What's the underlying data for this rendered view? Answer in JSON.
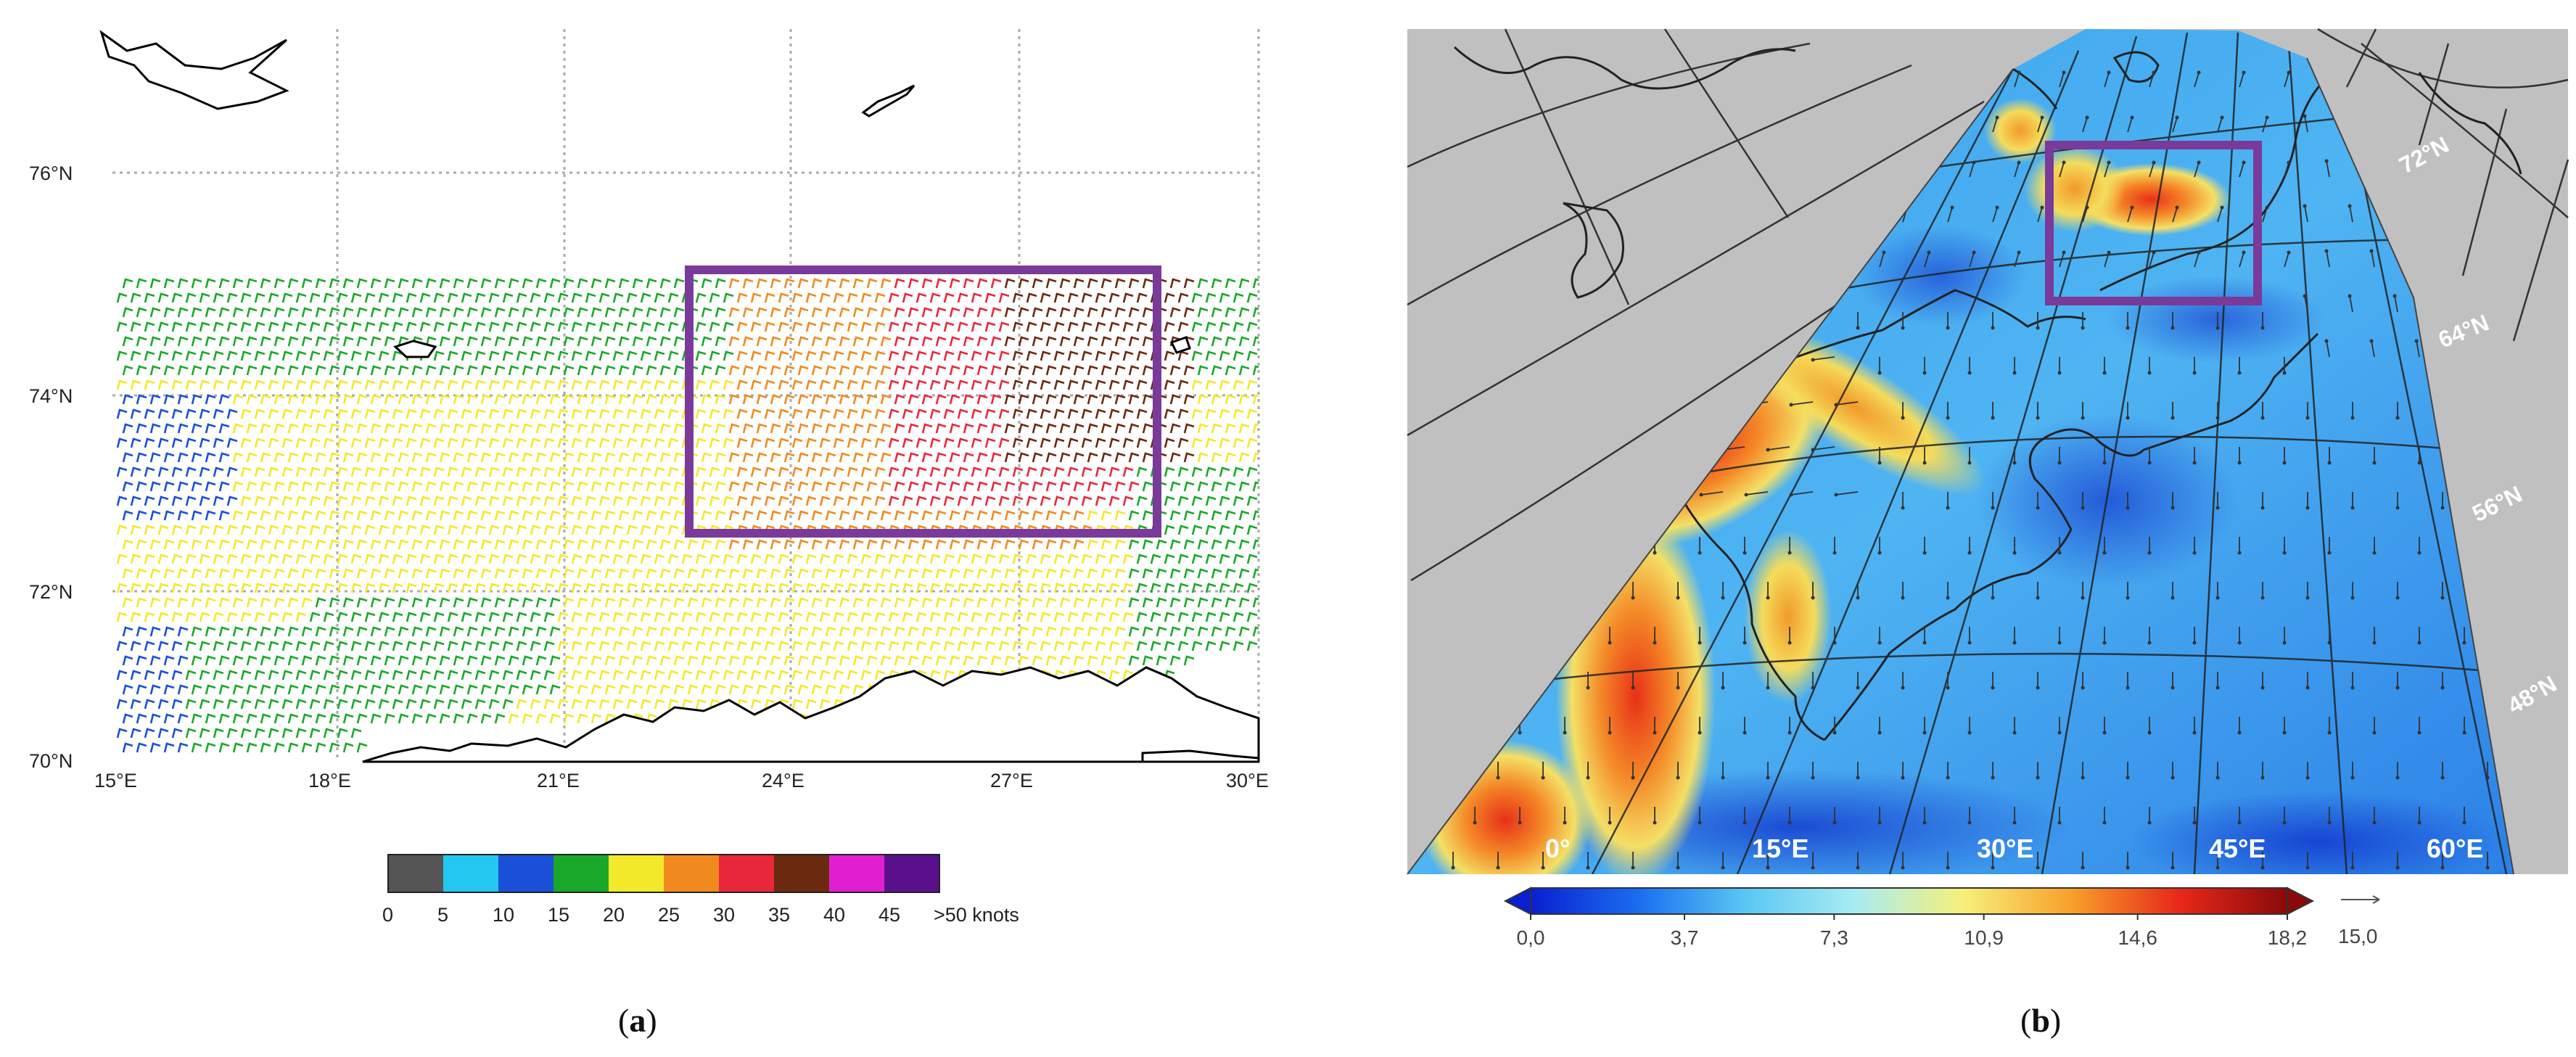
{
  "panel_a": {
    "caption_open": "(",
    "caption_letter": "a",
    "caption_close": ")",
    "lat_labels": [
      "76°N",
      "74°N",
      "72°N",
      "70°N"
    ],
    "lon_labels": [
      "15°E",
      "18°E",
      "21°E",
      "24°E",
      "27°E",
      "30°E"
    ],
    "legend": {
      "unit": "knots",
      "tick_labels": [
        "0",
        "5",
        "10",
        "15",
        "20",
        "25",
        "30",
        "35",
        "40",
        "45",
        ">50 knots"
      ],
      "bins": [
        {
          "range": "0-5",
          "color": "#555555"
        },
        {
          "range": "5-10",
          "color": "#22c8f0"
        },
        {
          "range": "10-15",
          "color": "#1a4fd8"
        },
        {
          "range": "15-20",
          "color": "#1aa82a"
        },
        {
          "range": "20-25",
          "color": "#f2e92a"
        },
        {
          "range": "25-30",
          "color": "#f08a1e"
        },
        {
          "range": "30-35",
          "color": "#e8283a"
        },
        {
          "range": "35-40",
          "color": "#6a2a10"
        },
        {
          "range": "40-45",
          "color": "#e020d0"
        },
        {
          "range": ">50",
          "color": "#5a108a"
        }
      ]
    },
    "highlight_color": "#7a3a9a"
  },
  "panel_b": {
    "caption_open": "(",
    "caption_letter": "b",
    "caption_close": ")",
    "lon_labels": [
      "0°",
      "15°E",
      "30°E",
      "45°E",
      "60°E"
    ],
    "lat_labels": [
      "72°N",
      "64°N",
      "56°N",
      "48°N"
    ],
    "colorbar": {
      "tick_labels": [
        "0,0",
        "3,7",
        "7,3",
        "10,9",
        "14,6",
        "18,2"
      ],
      "min": 0.0,
      "max": 18.2,
      "colors": [
        "#0a1fd0",
        "#1a6ef0",
        "#5ac8f4",
        "#a8ecf2",
        "#f6f07a",
        "#f8a02a",
        "#e8281a",
        "#8a0a0a"
      ]
    },
    "reference_vector_label": "15,0",
    "land_color": "#c0c0c0",
    "highlight_color": "#7a3a9a"
  }
}
